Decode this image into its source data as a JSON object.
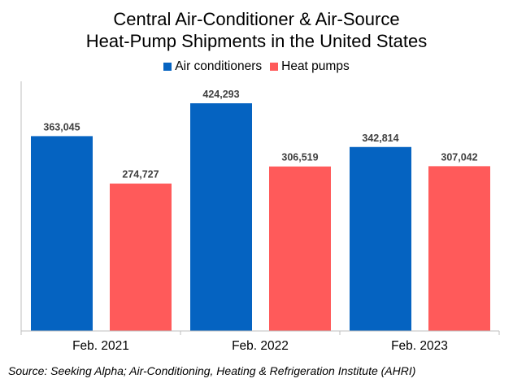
{
  "chart_data": {
    "type": "bar",
    "title_line1": "Central Air-Conditioner & Air-Source",
    "title_line2": "Heat-Pump Shipments in the United States",
    "categories": [
      "Feb. 2021",
      "Feb. 2022",
      "Feb. 2023"
    ],
    "series": [
      {
        "name": "Air conditioners",
        "color": "#0563C1",
        "values": [
          363045,
          424293,
          342814
        ],
        "labels": [
          "363,045",
          "424,293",
          "342,814"
        ]
      },
      {
        "name": "Heat pumps",
        "color": "#FF5A5A",
        "values": [
          274727,
          306519,
          307042
        ],
        "labels": [
          "274,727",
          "306,519",
          "307,042"
        ]
      }
    ],
    "ylim": [
      0,
      450000
    ],
    "grid": false,
    "legend_position": "top"
  },
  "source": "Source: Seeking Alpha; Air-Conditioning, Heating & Refrigeration Institute (AHRI)"
}
